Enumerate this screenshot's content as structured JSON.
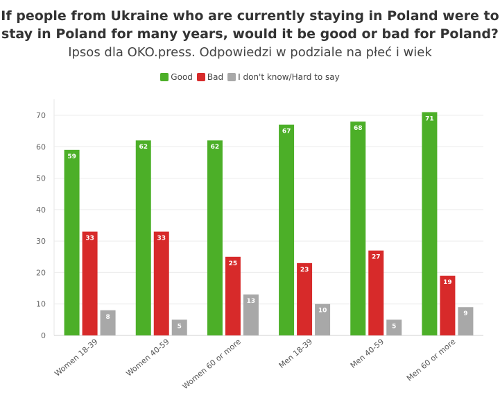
{
  "chart_data": {
    "type": "bar",
    "title": "If people from Ukraine who are currently staying in Poland were to stay in Poland for many years, would it be good or bad for Poland?",
    "subtitle": "Ipsos dla OKO.press. Odpowiedzi w podziale na płeć i wiek",
    "categories": [
      "Women 18-39",
      "Women 40-59",
      "Women 60 or more",
      "Men 18-39",
      "Men 40-59",
      "Men 60 or more"
    ],
    "series": [
      {
        "name": "Good",
        "color": "#4caf28",
        "values": [
          59,
          62,
          62,
          67,
          68,
          71
        ]
      },
      {
        "name": "Bad",
        "color": "#d72a2a",
        "values": [
          33,
          33,
          25,
          23,
          27,
          19
        ]
      },
      {
        "name": "I don't know/Hard to say",
        "color": "#a8a8a8",
        "values": [
          8,
          5,
          13,
          10,
          5,
          9
        ]
      }
    ],
    "yticks": [
      0,
      10,
      20,
      30,
      40,
      50,
      60,
      70
    ],
    "ylim": [
      0,
      75
    ],
    "xlabel": "",
    "ylabel": "",
    "legend_position": "top-center",
    "grid": true
  }
}
